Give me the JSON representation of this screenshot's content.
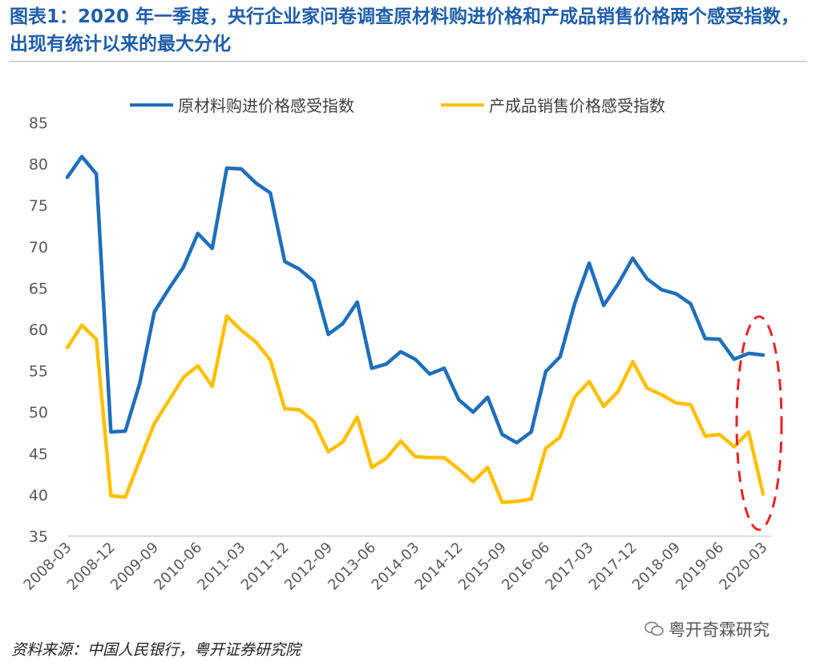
{
  "title": "图表1：2020 年一季度，央行企业家问卷调查原材料购进价格和产成品销售价格两个感受指数，出现有统计以来的最大分化",
  "source": "资料来源：中国人民银行，粤开证券研究院",
  "watermark": "粤开奇霖研究",
  "colors": {
    "series1": "#1f6fba",
    "series2": "#ffc000",
    "highlight": "#e8232a",
    "title": "#1f5ea8"
  },
  "chart_data": {
    "type": "line",
    "ylim": [
      35,
      85
    ],
    "yticks": [
      35,
      40,
      45,
      50,
      55,
      60,
      65,
      70,
      75,
      80,
      85
    ],
    "grid": false,
    "legend_position": "top",
    "xlabel": "",
    "ylabel": "",
    "x": [
      "2008-03",
      "2008-06",
      "2008-09",
      "2008-12",
      "2009-03",
      "2009-06",
      "2009-09",
      "2009-12",
      "2010-03",
      "2010-06",
      "2010-09",
      "2010-12",
      "2011-03",
      "2011-06",
      "2011-09",
      "2011-12",
      "2012-03",
      "2012-06",
      "2012-09",
      "2012-12",
      "2013-03",
      "2013-06",
      "2013-09",
      "2013-12",
      "2014-03",
      "2014-06",
      "2014-09",
      "2014-12",
      "2015-03",
      "2015-06",
      "2015-09",
      "2015-12",
      "2016-03",
      "2016-06",
      "2016-09",
      "2016-12",
      "2017-03",
      "2017-06",
      "2017-09",
      "2017-12",
      "2018-03",
      "2018-06",
      "2018-09",
      "2018-12",
      "2019-03",
      "2019-06",
      "2019-09",
      "2019-12",
      "2020-03"
    ],
    "xtick_labels": [
      "2008-03",
      "2008-12",
      "2009-09",
      "2010-06",
      "2011-03",
      "2011-12",
      "2012-09",
      "2013-06",
      "2014-03",
      "2014-12",
      "2015-09",
      "2016-06",
      "2017-03",
      "2017-12",
      "2018-09",
      "2019-06",
      "2020-03"
    ],
    "series": [
      {
        "name": "原材料购进价格感受指数",
        "color": "#1f6fba",
        "values": [
          78.4,
          80.9,
          78.8,
          47.6,
          47.7,
          53.5,
          62.1,
          64.9,
          67.5,
          71.6,
          69.8,
          79.5,
          79.4,
          77.7,
          76.5,
          68.2,
          67.3,
          65.8,
          59.4,
          60.7,
          63.3,
          55.3,
          55.8,
          57.3,
          56.4,
          54.6,
          55.3,
          51.5,
          50.0,
          51.8,
          47.3,
          46.3,
          47.6,
          54.9,
          56.7,
          63.1,
          68.0,
          62.9,
          65.5,
          68.6,
          66.1,
          64.8,
          64.3,
          63.1,
          58.9,
          58.8,
          56.4,
          57.1,
          56.9
        ]
      },
      {
        "name": "产成品销售价格感受指数",
        "color": "#ffc000",
        "values": [
          57.8,
          60.5,
          58.8,
          39.9,
          39.7,
          44.2,
          48.6,
          51.4,
          54.2,
          55.6,
          53.1,
          61.6,
          59.9,
          58.5,
          56.3,
          50.4,
          50.3,
          48.9,
          45.2,
          46.4,
          49.4,
          43.3,
          44.4,
          46.5,
          44.6,
          44.5,
          44.5,
          43.1,
          41.6,
          43.3,
          39.1,
          39.2,
          39.5,
          45.6,
          47.0,
          51.8,
          53.7,
          50.7,
          52.5,
          56.1,
          52.9,
          52.1,
          51.1,
          50.9,
          47.1,
          47.3,
          45.8,
          47.6,
          40.1
        ]
      }
    ]
  }
}
